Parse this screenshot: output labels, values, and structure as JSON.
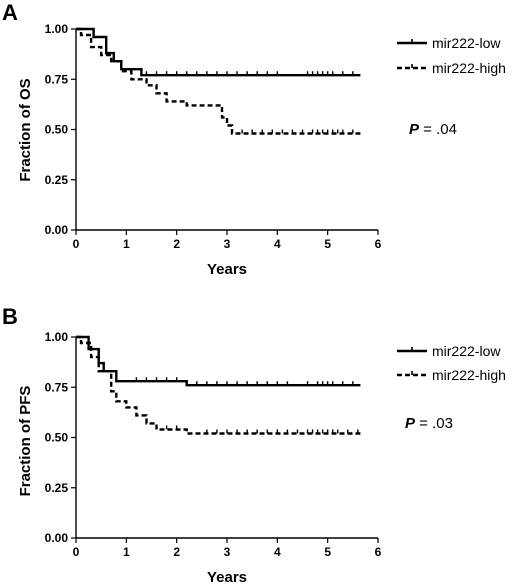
{
  "chart_data": [
    {
      "type": "line",
      "panel_label": "A",
      "xlabel": "Years",
      "ylabel": "Fraction of OS",
      "xlim": [
        0,
        6
      ],
      "ylim": [
        0,
        1
      ],
      "x_ticks": [
        "0",
        "1",
        "2",
        "3",
        "4",
        "5",
        "6"
      ],
      "y_ticks": [
        "0.00",
        "0.25",
        "0.50",
        "0.75",
        "1.00"
      ],
      "legend_position": "top-right",
      "p_value": {
        "symbol": "P",
        "text": " = .04"
      },
      "series": [
        {
          "name": "mir222-low",
          "style": "solid",
          "points": [
            [
              0,
              1.0
            ],
            [
              0.35,
              1.0
            ],
            [
              0.35,
              0.96
            ],
            [
              0.6,
              0.96
            ],
            [
              0.6,
              0.88
            ],
            [
              0.75,
              0.88
            ],
            [
              0.75,
              0.84
            ],
            [
              0.9,
              0.84
            ],
            [
              0.9,
              0.8
            ],
            [
              1.3,
              0.8
            ],
            [
              1.3,
              0.77
            ],
            [
              5.65,
              0.77
            ]
          ],
          "censor_x": [
            1.4,
            1.6,
            1.8,
            2.0,
            2.2,
            2.4,
            2.6,
            2.8,
            3.0,
            3.2,
            3.4,
            3.6,
            3.8,
            4.0,
            4.6,
            4.7,
            4.8,
            4.9,
            5.0,
            5.1,
            5.3,
            5.5
          ]
        },
        {
          "name": "mir222-high",
          "style": "dashed",
          "points": [
            [
              0,
              1.0
            ],
            [
              0.1,
              1.0
            ],
            [
              0.1,
              0.97
            ],
            [
              0.3,
              0.97
            ],
            [
              0.3,
              0.91
            ],
            [
              0.5,
              0.91
            ],
            [
              0.5,
              0.87
            ],
            [
              0.7,
              0.87
            ],
            [
              0.7,
              0.84
            ],
            [
              0.9,
              0.84
            ],
            [
              0.9,
              0.79
            ],
            [
              1.1,
              0.79
            ],
            [
              1.1,
              0.75
            ],
            [
              1.4,
              0.75
            ],
            [
              1.4,
              0.72
            ],
            [
              1.6,
              0.72
            ],
            [
              1.6,
              0.68
            ],
            [
              1.8,
              0.68
            ],
            [
              1.8,
              0.64
            ],
            [
              2.2,
              0.64
            ],
            [
              2.2,
              0.62
            ],
            [
              2.9,
              0.62
            ],
            [
              2.9,
              0.56
            ],
            [
              3.0,
              0.56
            ],
            [
              3.0,
              0.52
            ],
            [
              3.1,
              0.52
            ],
            [
              3.1,
              0.48
            ],
            [
              5.65,
              0.48
            ]
          ],
          "censor_x": [
            3.3,
            3.5,
            3.7,
            3.9,
            4.1,
            4.3,
            4.5,
            4.7,
            4.8,
            4.9,
            5.0,
            5.1,
            5.2,
            5.3,
            5.5
          ]
        }
      ]
    },
    {
      "type": "line",
      "panel_label": "B",
      "xlabel": "Years",
      "ylabel": "Fraction of PFS",
      "xlim": [
        0,
        6
      ],
      "ylim": [
        0,
        1
      ],
      "x_ticks": [
        "0",
        "1",
        "2",
        "3",
        "4",
        "5",
        "6"
      ],
      "y_ticks": [
        "0.00",
        "0.25",
        "0.50",
        "0.75",
        "1.00"
      ],
      "legend_position": "top-right",
      "p_value": {
        "symbol": "P",
        "text": " = .03"
      },
      "series": [
        {
          "name": "mir222-low",
          "style": "solid",
          "points": [
            [
              0,
              1.0
            ],
            [
              0.25,
              1.0
            ],
            [
              0.25,
              0.94
            ],
            [
              0.45,
              0.94
            ],
            [
              0.45,
              0.87
            ],
            [
              0.55,
              0.87
            ],
            [
              0.55,
              0.83
            ],
            [
              0.8,
              0.83
            ],
            [
              0.8,
              0.78
            ],
            [
              2.2,
              0.78
            ],
            [
              2.2,
              0.76
            ],
            [
              5.65,
              0.76
            ]
          ],
          "censor_x": [
            1.2,
            1.4,
            1.6,
            1.8,
            2.0,
            2.4,
            2.6,
            2.8,
            3.0,
            3.2,
            3.4,
            3.6,
            3.8,
            4.0,
            4.2,
            4.6,
            4.8,
            4.9,
            5.0,
            5.1,
            5.3,
            5.5
          ]
        },
        {
          "name": "mir222-high",
          "style": "dashed",
          "points": [
            [
              0,
              1.0
            ],
            [
              0.1,
              1.0
            ],
            [
              0.1,
              0.97
            ],
            [
              0.3,
              0.97
            ],
            [
              0.3,
              0.9
            ],
            [
              0.45,
              0.9
            ],
            [
              0.45,
              0.83
            ],
            [
              0.7,
              0.83
            ],
            [
              0.7,
              0.73
            ],
            [
              0.8,
              0.73
            ],
            [
              0.8,
              0.68
            ],
            [
              1.0,
              0.68
            ],
            [
              1.0,
              0.65
            ],
            [
              1.2,
              0.65
            ],
            [
              1.2,
              0.61
            ],
            [
              1.4,
              0.61
            ],
            [
              1.4,
              0.57
            ],
            [
              1.6,
              0.57
            ],
            [
              1.6,
              0.54
            ],
            [
              2.2,
              0.54
            ],
            [
              2.2,
              0.52
            ],
            [
              5.65,
              0.52
            ]
          ],
          "censor_x": [
            1.8,
            2.0,
            2.6,
            2.8,
            3.0,
            3.2,
            3.4,
            3.6,
            3.8,
            4.0,
            4.2,
            4.4,
            4.6,
            4.7,
            4.8,
            4.9,
            5.0,
            5.1,
            5.2,
            5.4,
            5.6
          ]
        }
      ]
    }
  ]
}
